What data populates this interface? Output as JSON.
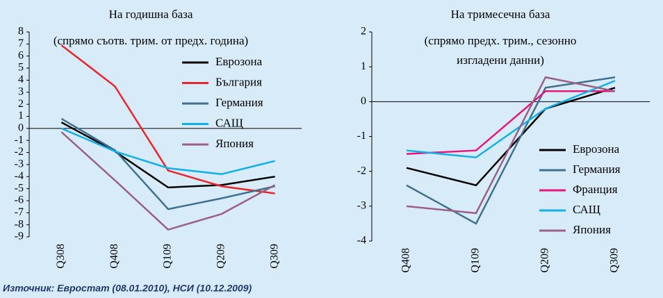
{
  "chart_data": [
    {
      "type": "line",
      "title": "На годишна база",
      "subtitle": [
        "(спрямо съотв. трим. от предх. година)"
      ],
      "categories": [
        "Q308",
        "Q408",
        "Q109",
        "Q209",
        "Q309"
      ],
      "ylim": [
        -9,
        8
      ],
      "yticks": [
        8,
        7,
        6,
        5,
        4,
        3,
        2,
        1,
        0,
        -1,
        -2,
        -3,
        -4,
        -5,
        -6,
        -7,
        -8,
        -9
      ],
      "legend": "top-right",
      "series": [
        {
          "name": "Еврозона",
          "color": "#000000",
          "values": [
            0.5,
            -1.9,
            -4.9,
            -4.7,
            -4.0
          ]
        },
        {
          "name": "България",
          "color": "#e8262b",
          "values": [
            6.9,
            3.5,
            -3.5,
            -4.8,
            -5.4
          ]
        },
        {
          "name": "Германия",
          "color": "#3f7091",
          "values": [
            0.8,
            -1.8,
            -6.7,
            -5.8,
            -4.8
          ]
        },
        {
          "name": "САЩ",
          "color": "#12b0e8",
          "values": [
            0.0,
            -1.9,
            -3.3,
            -3.8,
            -2.7
          ]
        },
        {
          "name": "Япония",
          "color": "#9b6084",
          "values": [
            -0.3,
            -4.3,
            -8.4,
            -7.1,
            -4.7
          ]
        }
      ]
    },
    {
      "type": "line",
      "title": "На тримесечна база",
      "subtitle": [
        "(спрямо предх. трим., сезонно",
        "изгладени данни)"
      ],
      "categories": [
        "Q408",
        "Q109",
        "Q209",
        "Q309"
      ],
      "ylim": [
        -4,
        2
      ],
      "yticks": [
        2,
        1,
        0,
        -1,
        -2,
        -3,
        -4
      ],
      "legend": "bottom-right",
      "series": [
        {
          "name": "Еврозона",
          "color": "#000000",
          "values": [
            -1.9,
            -2.4,
            -0.2,
            0.4
          ]
        },
        {
          "name": "Германия",
          "color": "#3f7091",
          "values": [
            -2.4,
            -3.5,
            0.4,
            0.7
          ]
        },
        {
          "name": "Франция",
          "color": "#e6177f",
          "values": [
            -1.5,
            -1.4,
            0.3,
            0.3
          ]
        },
        {
          "name": "САЩ",
          "color": "#12b0e8",
          "values": [
            -1.4,
            -1.6,
            -0.2,
            0.6
          ]
        },
        {
          "name": "Япония",
          "color": "#9b6084",
          "values": [
            -3.0,
            -3.2,
            0.7,
            0.3
          ]
        }
      ]
    }
  ],
  "source": "Източник: Евростат (08.01.2010), НСИ (10.12.2009)"
}
